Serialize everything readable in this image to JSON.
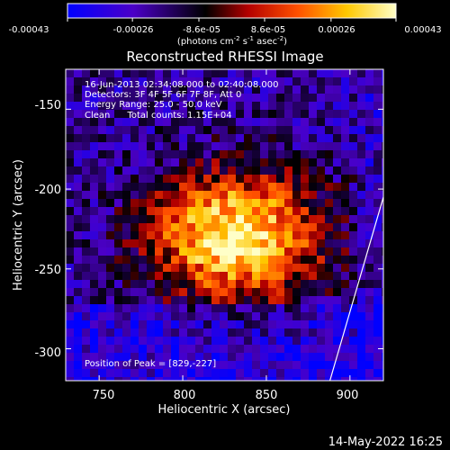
{
  "chart_data": {
    "type": "heatmap",
    "title": "Reconstructed RHESSI Image",
    "xlabel": "Heliocentric X (arcsec)",
    "ylabel": "Heliocentric Y (arcsec)",
    "xlim": [
      730,
      920
    ],
    "ylim": [
      -320,
      -125
    ],
    "x_ticks": [
      "750",
      "800",
      "850",
      "900"
    ],
    "x_tick_values": [
      750,
      800,
      850,
      900
    ],
    "y_ticks": [
      "-150",
      "-200",
      "-250",
      "-300"
    ],
    "y_tick_values": [
      -150,
      -200,
      -250,
      -300
    ],
    "colorbar": {
      "min": -0.00043,
      "max": 0.00043,
      "tick_labels": [
        "-0.00043",
        "-0.00026",
        "-8.6e-05",
        "8.6e-05",
        "0.00026",
        "0.00043"
      ],
      "tick_values": [
        -0.00043,
        -0.00026,
        -8.6e-05,
        8.6e-05,
        0.00026,
        0.00043
      ],
      "unit_label_parts": {
        "pre": "(photons cm",
        "exp1": "-2",
        "mid": " s",
        "exp2": "-1",
        "post": " asec",
        "exp3": "-2",
        "end": ")"
      },
      "colors": [
        "#0000ff",
        "#4b00c8",
        "#000000",
        "#b40000",
        "#ff5000",
        "#ffc800",
        "#ffffc8"
      ]
    },
    "annotations": {
      "time_range": "16-Jun-2013 02:34:08.000 to 02:40:08.000",
      "detectors": "Detectors: 3F 4F 5F 6F 7F 8F, Att 0",
      "energy_range": "Energy Range: 25.0 - 50.0 keV",
      "clean_counts": "Clean      Total counts: 1.15E+04",
      "peak_position": "Position of Peak = [829,-227]"
    },
    "peak": {
      "x": 829,
      "y": -227
    },
    "limb_line": [
      [
        888,
        -320
      ],
      [
        920,
        -205
      ]
    ]
  },
  "footer": {
    "date_time": "14-May-2022 16:25"
  }
}
